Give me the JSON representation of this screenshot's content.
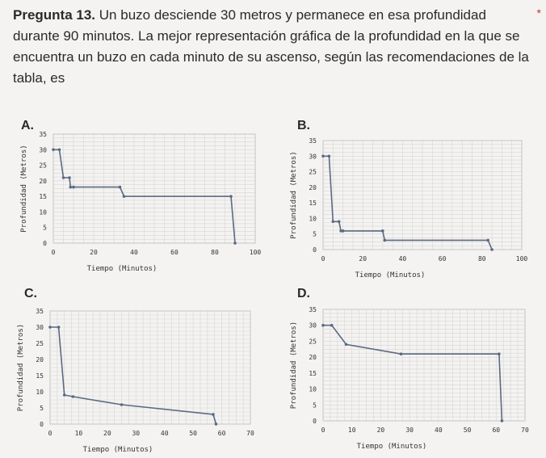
{
  "question": {
    "number_label": "Pregunta 13.",
    "text": "Un buzo desciende 30 metros y permanece en esa profundidad durante 90 minutos. La mejor representación gráfica de la profundidad en la que se encuentra un buzo en cada minuto de su ascenso, según las recomendaciones de la tabla, es",
    "required_mark": "*"
  },
  "chart_data": [
    {
      "option": "A.",
      "type": "line",
      "xlabel": "Tiempo (Minutos)",
      "ylabel": "Profundidad (Metros)",
      "xlim": [
        0,
        100
      ],
      "ylim": [
        0,
        35
      ],
      "xticks": [
        0,
        20,
        40,
        60,
        80,
        100
      ],
      "yticks": [
        0,
        5,
        10,
        15,
        20,
        25,
        30,
        35
      ],
      "grid": true,
      "points": [
        [
          0,
          30
        ],
        [
          3,
          30
        ],
        [
          5,
          21
        ],
        [
          8,
          21
        ],
        [
          8.5,
          18
        ],
        [
          10,
          18
        ],
        [
          33,
          18
        ],
        [
          35,
          15
        ],
        [
          88,
          15
        ],
        [
          90,
          0
        ]
      ]
    },
    {
      "option": "B.",
      "type": "line",
      "xlabel": "Tiempo (Minutos)",
      "ylabel": "Profundidad (Metros)",
      "xlim": [
        0,
        100
      ],
      "ylim": [
        0,
        35
      ],
      "xticks": [
        0,
        20,
        40,
        60,
        80,
        100
      ],
      "yticks": [
        0,
        5,
        10,
        15,
        20,
        25,
        30,
        35
      ],
      "grid": true,
      "points": [
        [
          0,
          30
        ],
        [
          3,
          30
        ],
        [
          5,
          9
        ],
        [
          8,
          9
        ],
        [
          9,
          6
        ],
        [
          10,
          6
        ],
        [
          30,
          6
        ],
        [
          31,
          3
        ],
        [
          83,
          3
        ],
        [
          85,
          0
        ]
      ]
    },
    {
      "option": "C.",
      "type": "line",
      "xlabel": "Tiempo (Minutos)",
      "ylabel": "Profundidad (Metros)",
      "xlim": [
        0,
        70
      ],
      "ylim": [
        0,
        35
      ],
      "xticks": [
        0,
        10,
        20,
        30,
        40,
        50,
        60,
        70
      ],
      "yticks": [
        0,
        5,
        10,
        15,
        20,
        25,
        30,
        35
      ],
      "grid": true,
      "points": [
        [
          0,
          30
        ],
        [
          3,
          30
        ],
        [
          5,
          9
        ],
        [
          8,
          8.5
        ],
        [
          25,
          6
        ],
        [
          57,
          3
        ],
        [
          58,
          0
        ]
      ]
    },
    {
      "option": "D.",
      "type": "line",
      "xlabel": "Tiempo (Minutos)",
      "ylabel": "Profundidad (Metros)",
      "xlim": [
        0,
        70
      ],
      "ylim": [
        0,
        35
      ],
      "xticks": [
        0,
        10,
        20,
        30,
        40,
        50,
        60,
        70
      ],
      "yticks": [
        0,
        5,
        10,
        15,
        20,
        25,
        30,
        35
      ],
      "grid": true,
      "points": [
        [
          0,
          30
        ],
        [
          3,
          30
        ],
        [
          8,
          24
        ],
        [
          27,
          21
        ],
        [
          61,
          21
        ],
        [
          62,
          0
        ]
      ]
    }
  ]
}
